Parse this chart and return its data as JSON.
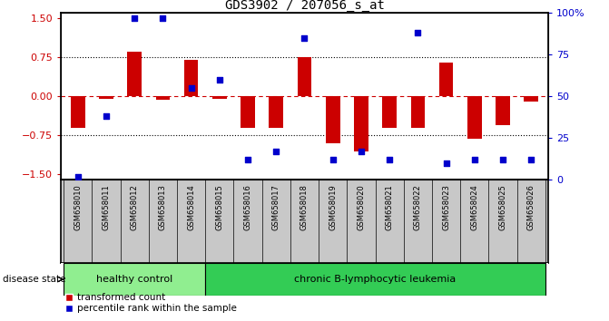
{
  "title": "GDS3902 / 207056_s_at",
  "samples": [
    "GSM658010",
    "GSM658011",
    "GSM658012",
    "GSM658013",
    "GSM658014",
    "GSM658015",
    "GSM658016",
    "GSM658017",
    "GSM658018",
    "GSM658019",
    "GSM658020",
    "GSM658021",
    "GSM658022",
    "GSM658023",
    "GSM658024",
    "GSM658025",
    "GSM658026"
  ],
  "bar_values": [
    -0.6,
    -0.05,
    0.85,
    -0.07,
    0.7,
    -0.05,
    -0.6,
    -0.6,
    0.75,
    -0.9,
    -1.05,
    -0.6,
    -0.6,
    0.65,
    -0.82,
    -0.55,
    -0.1
  ],
  "dot_values": [
    2,
    38,
    97,
    97,
    55,
    60,
    12,
    17,
    85,
    12,
    17,
    12,
    88,
    10,
    12,
    12,
    12
  ],
  "bar_color": "#cc0000",
  "dot_color": "#0000cc",
  "ylim_left": [
    -1.6,
    1.6
  ],
  "ylim_right": [
    0,
    100
  ],
  "yticks_left": [
    -1.5,
    -0.75,
    0,
    0.75,
    1.5
  ],
  "yticks_right": [
    0,
    25,
    50,
    75,
    100
  ],
  "yticklabels_right": [
    "0",
    "25",
    "50",
    "75",
    "100%"
  ],
  "group_labels": [
    "healthy control",
    "chronic B-lymphocytic leukemia"
  ],
  "group_colors": [
    "#90ee90",
    "#33cc55"
  ],
  "group_ranges": [
    [
      0,
      5
    ],
    [
      5,
      17
    ]
  ],
  "disease_label": "disease state",
  "legend_items": [
    {
      "label": "transformed count",
      "color": "#cc0000"
    },
    {
      "label": "percentile rank within the sample",
      "color": "#0000cc"
    }
  ],
  "bar_width": 0.5,
  "dot_size": 22,
  "background_color": "#ffffff",
  "axis_label_color_left": "#cc0000",
  "axis_label_color_right": "#0000cc",
  "xlabels_bg": "#c8c8c8",
  "spine_color": "#000000"
}
